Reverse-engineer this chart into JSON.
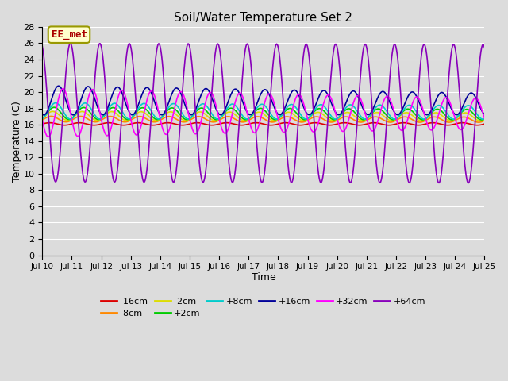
{
  "title": "Soil/Water Temperature Set 2",
  "xlabel": "Time",
  "ylabel": "Temperature (C)",
  "xlim": [
    0,
    15
  ],
  "ylim": [
    0,
    28
  ],
  "yticks": [
    0,
    2,
    4,
    6,
    8,
    10,
    12,
    14,
    16,
    18,
    20,
    22,
    24,
    26,
    28
  ],
  "xtick_labels": [
    "Jul 10",
    "Jul 11",
    "Jul 12",
    "Jul 13",
    "Jul 14",
    "Jul 15",
    "Jul 16",
    "Jul 17",
    "Jul 18",
    "Jul 19",
    "Jul 20",
    "Jul 21",
    "Jul 22",
    "Jul 23",
    "Jul 24",
    "Jul 25"
  ],
  "bg_color": "#dcdcdc",
  "plot_bg": "#dcdcdc",
  "series": [
    {
      "label": "-16cm",
      "color": "#dd0000",
      "base": 16.1,
      "amp": 0.15,
      "phase_shift": 0.0,
      "amp_decay": 0.0,
      "base_trend": 0.0
    },
    {
      "label": "-8cm",
      "color": "#ff8800",
      "base": 16.7,
      "amp": 0.35,
      "phase_shift": 0.05,
      "amp_decay": 0.005,
      "base_trend": -0.005
    },
    {
      "label": "-2cm",
      "color": "#dddd00",
      "base": 17.1,
      "amp": 0.55,
      "phase_shift": 0.1,
      "amp_decay": 0.008,
      "base_trend": -0.008
    },
    {
      "label": "+2cm",
      "color": "#00cc00",
      "base": 17.4,
      "amp": 0.75,
      "phase_shift": 0.15,
      "amp_decay": 0.01,
      "base_trend": -0.01
    },
    {
      "label": "+8cm",
      "color": "#00cccc",
      "base": 17.7,
      "amp": 1.0,
      "phase_shift": 0.2,
      "amp_decay": 0.012,
      "base_trend": -0.012
    },
    {
      "label": "+16cm",
      "color": "#000099",
      "base": 19.0,
      "amp": 1.8,
      "phase_shift": 0.3,
      "amp_decay": 0.02,
      "base_trend": -0.03
    },
    {
      "label": "+32cm",
      "color": "#ff00ff",
      "base": 17.5,
      "amp": 3.0,
      "phase_shift": 0.45,
      "amp_decay": 0.03,
      "base_trend": -0.01
    },
    {
      "label": "+64cm",
      "color": "#8800bb",
      "base": 17.5,
      "amp": 8.5,
      "phase_shift": 0.7,
      "amp_decay": 0.0,
      "base_trend": -0.01
    }
  ],
  "annotation_text": "EE_met",
  "annotation_color": "#aa0000",
  "annotation_bg": "#ffffcc",
  "annotation_border": "#999900"
}
